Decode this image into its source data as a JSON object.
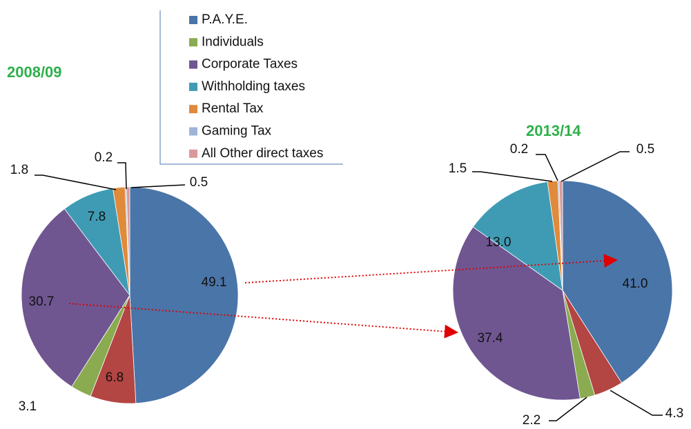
{
  "chart_data": [
    {
      "type": "pie",
      "title": "2008/09",
      "categories": [
        "P.A.Y.E.",
        null,
        "Individuals",
        "Corporate Taxes",
        "Withholding taxes",
        "Rental Tax",
        "Gaming Tax",
        "All Other direct taxes"
      ],
      "values": [
        49.1,
        6.8,
        3.1,
        30.7,
        7.8,
        1.8,
        0.2,
        0.5
      ],
      "value_labels": [
        "49.1",
        "6.8",
        "3.1",
        "30.7",
        "7.8",
        "1.8",
        "0.2",
        "0.5"
      ],
      "colors": [
        "#4a75a8",
        "#b34542",
        "#8aab4f",
        "#6f5691",
        "#3f9bb4",
        "#e08a3b",
        "#a0b4d9",
        "#d9999a"
      ]
    },
    {
      "type": "pie",
      "title": "2013/14",
      "categories": [
        "P.A.Y.E.",
        null,
        "Individuals",
        "Corporate Taxes",
        "Withholding taxes",
        "Rental Tax",
        "Gaming Tax",
        "All Other direct taxes"
      ],
      "values": [
        41.0,
        4.3,
        2.2,
        37.4,
        13.0,
        1.5,
        0.2,
        0.5
      ],
      "value_labels": [
        "41.0",
        "4.3",
        "2.2",
        "37.4",
        "13.0",
        "1.5",
        "0.2",
        "0.5"
      ],
      "colors": [
        "#4a75a8",
        "#b34542",
        "#8aab4f",
        "#6f5691",
        "#3f9bb4",
        "#e08a3b",
        "#a0b4d9",
        "#d9999a"
      ]
    }
  ]
}
